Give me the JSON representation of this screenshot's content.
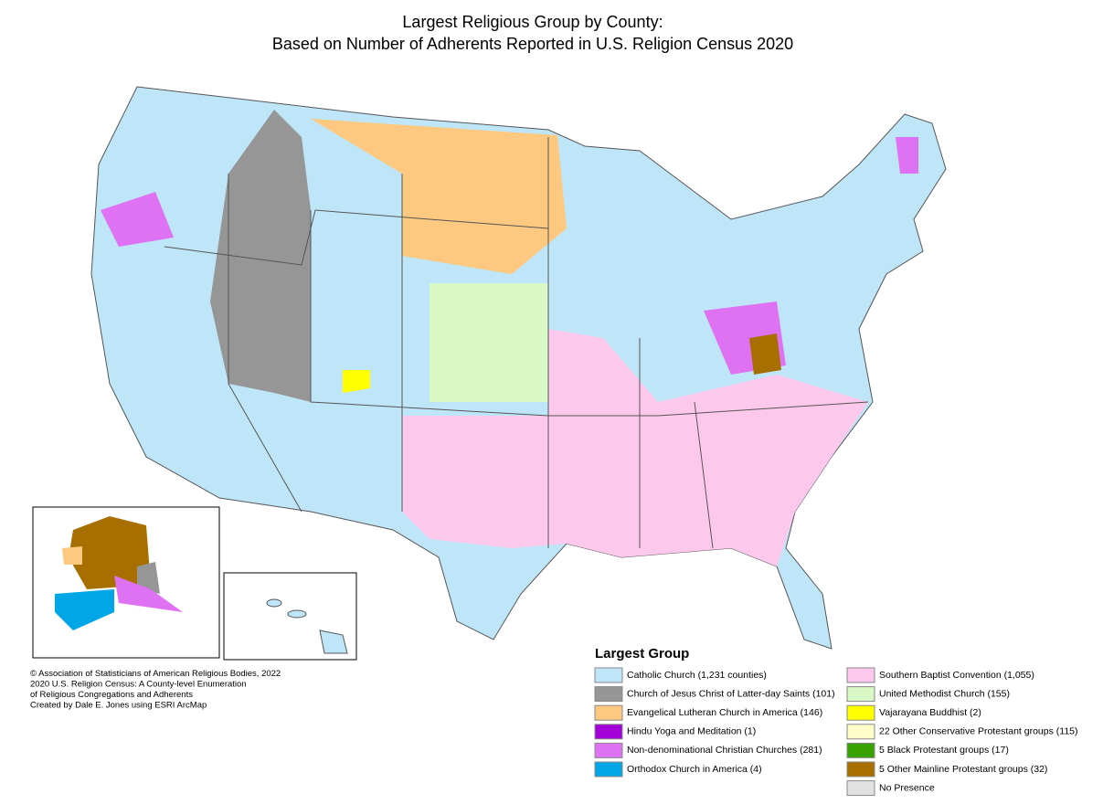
{
  "header": {
    "title_lines": [
      "Largest Religious Group by County:",
      "Based on Number of Adherents Reported in U.S. Religion Census 2020"
    ]
  },
  "legend": {
    "title": "Largest Group",
    "items": [
      {
        "label": "Catholic Church (1,231 counties)",
        "color": "#bfe6f8"
      },
      {
        "label": "Church of Jesus Christ of Latter-day Saints (101)",
        "color": "#969696"
      },
      {
        "label": "Evangelical Lutheran Church in America (146)",
        "color": "#fdc980"
      },
      {
        "label": "Hindu Yoga and Meditation (1)",
        "color": "#a400d8"
      },
      {
        "label": "Non-denominational Christian Churches (281)",
        "color": "#df72f2"
      },
      {
        "label": "Orthodox Church in America (4)",
        "color": "#00a6e6"
      },
      {
        "label": "Southern Baptist Convention (1,055)",
        "color": "#fcc8ec"
      },
      {
        "label": "United Methodist Church (155)",
        "color": "#d8f8c6"
      },
      {
        "label": "Vajarayana Buddhist (2)",
        "color": "#ffff00"
      },
      {
        "label": "22 Other Conservative Protestant groups (115)",
        "color": "#fffdc8"
      },
      {
        "label": "5 Black Protestant groups (17)",
        "color": "#38a300"
      },
      {
        "label": "5 Other Mainline Protestant groups (32)",
        "color": "#a66f00"
      },
      {
        "label": "No Presence",
        "color": "#e1e1e1"
      }
    ]
  },
  "credits": [
    "© Association of Statisticians of American Religious Bodies, 2022",
    "2020 U.S. Religion Census: A County-level Enumeration",
    "of Religious Congregations and Adherents",
    "Created by Dale E. Jones using ESRI ArcMap"
  ]
}
